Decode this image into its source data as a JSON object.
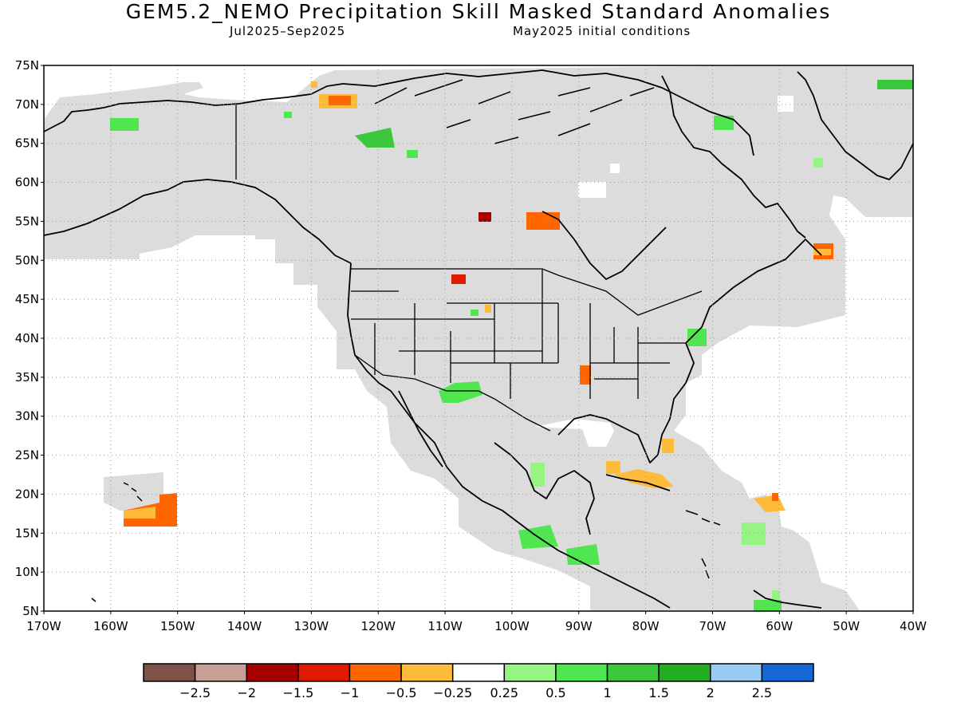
{
  "title": "GEM5.2_NEMO Precipitation Skill Masked Standard Anomalies",
  "subtitle_left": "Jul2025–Sep2025",
  "subtitle_right": "May2025 initial conditions",
  "lat_labels": [
    "75N",
    "70N",
    "65N",
    "60N",
    "55N",
    "50N",
    "45N",
    "40N",
    "35N",
    "30N",
    "25N",
    "20N",
    "15N",
    "10N",
    "5N"
  ],
  "lon_labels": [
    "170W",
    "160W",
    "150W",
    "140W",
    "130W",
    "120W",
    "110W",
    "100W",
    "90W",
    "80W",
    "70W",
    "60W",
    "50W",
    "40W"
  ],
  "colorbar": {
    "colors": [
      "#7f5248",
      "#c9a097",
      "#a40000",
      "#e01a00",
      "#ff6600",
      "#ffbb3a",
      "#ffffff",
      "#96f582",
      "#50e650",
      "#3cc83c",
      "#22ad22",
      "#99ccf2",
      "#1668d6"
    ],
    "labels": [
      "-2.5",
      "-2",
      "-1.5",
      "-1",
      "-0.5",
      "-0.25",
      "0.25",
      "0.5",
      "1",
      "1.5",
      "2",
      "2.5"
    ]
  },
  "colors": {
    "mask": "#dcdcdc",
    "grid": "#999999",
    "coast": "#000000"
  }
}
